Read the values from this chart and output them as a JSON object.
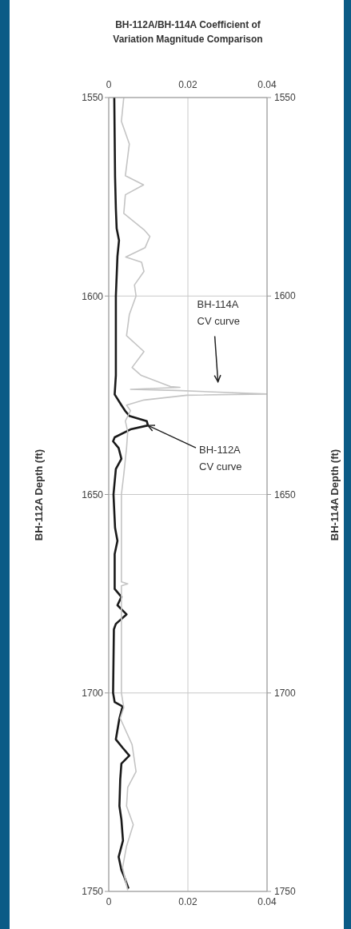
{
  "chart_data": {
    "type": "line",
    "title": "BH-112A/BH-114A Coefficient of Variation  Magnitude Comparison",
    "ylabel": "BH-112A Depth (ft)",
    "y2label": "BH-114A Depth (ft)",
    "xlim": [
      0,
      0.04
    ],
    "xticks": [
      0,
      0.02,
      0.04
    ],
    "x2lim": [
      0,
      0.04
    ],
    "x2ticks": [
      0,
      0.02,
      0.04
    ],
    "ylim": [
      1750,
      1550
    ],
    "yticks": [
      1550,
      1600,
      1650,
      1700,
      1750
    ],
    "y2lim": [
      1750,
      1550
    ],
    "y2ticks": [
      1550,
      1600,
      1650,
      1700,
      1750
    ],
    "grid": true,
    "marker": "none",
    "line_style": "solid",
    "series": [
      {
        "color": "#1a1a1a",
        "x": [
          0.0014,
          0.0015,
          0.0016,
          0.0018,
          0.002,
          0.0026,
          0.0022,
          0.0018,
          0.0018,
          0.0018,
          0.0015,
          0.0032,
          0.0042,
          0.0052,
          0.0096,
          0.0099,
          0.0055,
          0.0015,
          0.0011,
          0.0025,
          0.0032,
          0.0018,
          0.0012,
          0.0016,
          0.0022,
          0.0015,
          0.0015,
          0.0032,
          0.0022,
          0.0045,
          0.0018,
          0.0013,
          0.0011,
          0.0015,
          0.0035,
          0.0027,
          0.0018,
          0.0035,
          0.0052,
          0.0032,
          0.0029,
          0.0027,
          0.0032,
          0.0036,
          0.0025,
          0.0032,
          0.0038,
          0.005
        ],
        "values": [
          1550,
          1560,
          1570,
          1578,
          1583,
          1586,
          1590,
          1600,
          1610,
          1620,
          1624.8,
          1627.5,
          1629,
          1630.2,
          1631.5,
          1632.6,
          1633.6,
          1635.6,
          1636.6,
          1638.3,
          1641,
          1643.6,
          1650,
          1658.4,
          1661.7,
          1665,
          1673.8,
          1675.8,
          1677.9,
          1680.2,
          1682.6,
          1684,
          1700,
          1702.3,
          1703.4,
          1706.4,
          1711.7,
          1713.8,
          1715.8,
          1717.8,
          1721.8,
          1728.5,
          1731.9,
          1737.2,
          1741.3,
          1744.6,
          1746,
          1749.3
        ]
      },
      {
        "color": "#c4c4c4",
        "x": [
          0.0038,
          0.0032,
          0.0052,
          0.0042,
          0.0088,
          0.0042,
          0.0038,
          0.0089,
          0.0104,
          0.0092,
          0.0043,
          0.0083,
          0.0089,
          0.0065,
          0.0069,
          0.0052,
          0.0045,
          0.0089,
          0.0059,
          0.0082,
          0.0156,
          0.018,
          0.0055,
          0.017,
          0.04,
          0.0197,
          0.0089,
          0.0045,
          0.0055,
          0.0042,
          0.0048,
          0.0045,
          0.0038,
          0.0032,
          0.0032,
          0.0048,
          0.0032,
          0.0032,
          0.0038,
          0.0029,
          0.0059,
          0.0069,
          0.0048,
          0.0045,
          0.0062,
          0.0045,
          0.0035,
          0.0048
        ],
        "values": [
          1550,
          1556,
          1561.7,
          1569.7,
          1572,
          1574.5,
          1579.2,
          1583.3,
          1585,
          1587.8,
          1590.2,
          1591.5,
          1593.8,
          1597.2,
          1600,
          1604.7,
          1610,
          1614,
          1618,
          1620,
          1622.8,
          1623,
          1623.5,
          1623.8,
          1624.7,
          1625,
          1626.2,
          1627.5,
          1628.9,
          1631.5,
          1634.2,
          1638.3,
          1645,
          1650,
          1672,
          1672.5,
          1673,
          1700,
          1703.7,
          1706.4,
          1713,
          1719.8,
          1723.8,
          1728.5,
          1733.2,
          1738.6,
          1744,
          1749.7
        ]
      }
    ],
    "annotations": [
      "BH-114A CV curve",
      {
        "text": "BH-112A CV curve",
        "x": 0.0099,
        "y": 1632.6
      }
    ]
  }
}
